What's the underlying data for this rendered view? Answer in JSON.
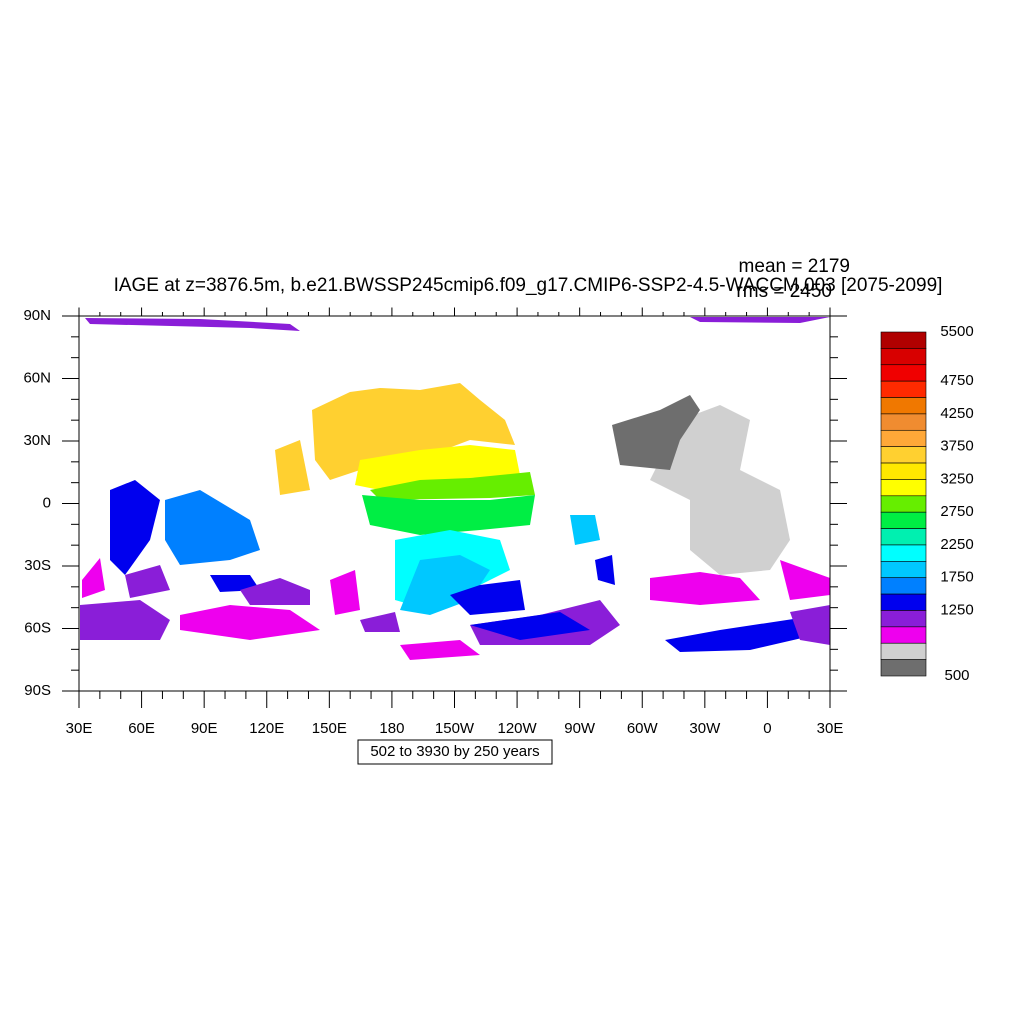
{
  "plot": {
    "title": "IAGE at z=3876.5m, b.e21.BWSSP245cmip6.f09_g17.CMIP6-SSP2-4.5-WACCM.003 [2075-2099]",
    "mean": "mean = 2179",
    "rms": "rms = 2450",
    "info": "502 to 3930 by 250 years"
  },
  "y_axis": {
    "labels": [
      "90N",
      "60N",
      "30N",
      "0",
      "30S",
      "60S",
      "90S"
    ]
  },
  "x_axis": {
    "labels": [
      "30E",
      "60E",
      "90E",
      "120E",
      "150E",
      "180",
      "150W",
      "120W",
      "90W",
      "60W",
      "30W",
      "0",
      "30E"
    ]
  },
  "colorbar": {
    "labels": [
      "5500",
      "4750",
      "4250",
      "3750",
      "3250",
      "2750",
      "2250",
      "1750",
      "1250",
      "500"
    ],
    "colors": [
      "#b00000",
      "#d80000",
      "#f00000",
      "#ff2a00",
      "#f07800",
      "#f08c30",
      "#ffa838",
      "#ffd030",
      "#ffe800",
      "#ffff00",
      "#66ee00",
      "#00ee44",
      "#00f0b0",
      "#00ffff",
      "#00c8ff",
      "#0080ff",
      "#0000ee",
      "#8a1ed8",
      "#ee00ee",
      "#d0d0d0",
      "#6e6e6e"
    ]
  }
}
